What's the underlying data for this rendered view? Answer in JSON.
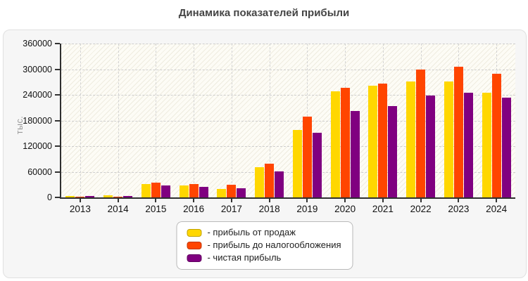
{
  "title": "Динамика показателей прибыли",
  "y_axis_label": "тыс.",
  "legend": {
    "items": [
      {
        "label": "- прибыль от продаж",
        "color": "#FFD700"
      },
      {
        "label": "- прибыль до налогообложения",
        "color": "#FF4500"
      },
      {
        "label": "- чистая прибыль",
        "color": "#800080"
      }
    ]
  },
  "chart_data": {
    "type": "bar",
    "title": "Динамика показателей прибыли",
    "xlabel": "",
    "ylabel": "тыс.",
    "categories": [
      "2013",
      "2014",
      "2015",
      "2016",
      "2017",
      "2018",
      "2019",
      "2020",
      "2021",
      "2022",
      "2023",
      "2024"
    ],
    "series": [
      {
        "name": "прибыль от продаж",
        "color": "#FFD700",
        "values": [
          2500,
          5000,
          31000,
          28500,
          19500,
          70500,
          158000,
          249000,
          262000,
          270500,
          270500,
          244500
        ]
      },
      {
        "name": "прибыль до налогообложения",
        "color": "#FF4500",
        "values": [
          2000,
          2000,
          34500,
          31500,
          29000,
          78500,
          189500,
          256000,
          266000,
          299500,
          305000,
          290000
        ]
      },
      {
        "name": "чистая прибыль",
        "color": "#800080",
        "values": [
          2500,
          2500,
          28500,
          25500,
          22000,
          60500,
          152000,
          203000,
          213000,
          238000,
          244500,
          234000
        ]
      }
    ],
    "ylim": [
      0,
      360000
    ],
    "yticks": [
      0,
      60000,
      120000,
      180000,
      240000,
      300000,
      360000
    ],
    "grid": true,
    "hatch_background": true,
    "legend_position": "bottom-center"
  }
}
